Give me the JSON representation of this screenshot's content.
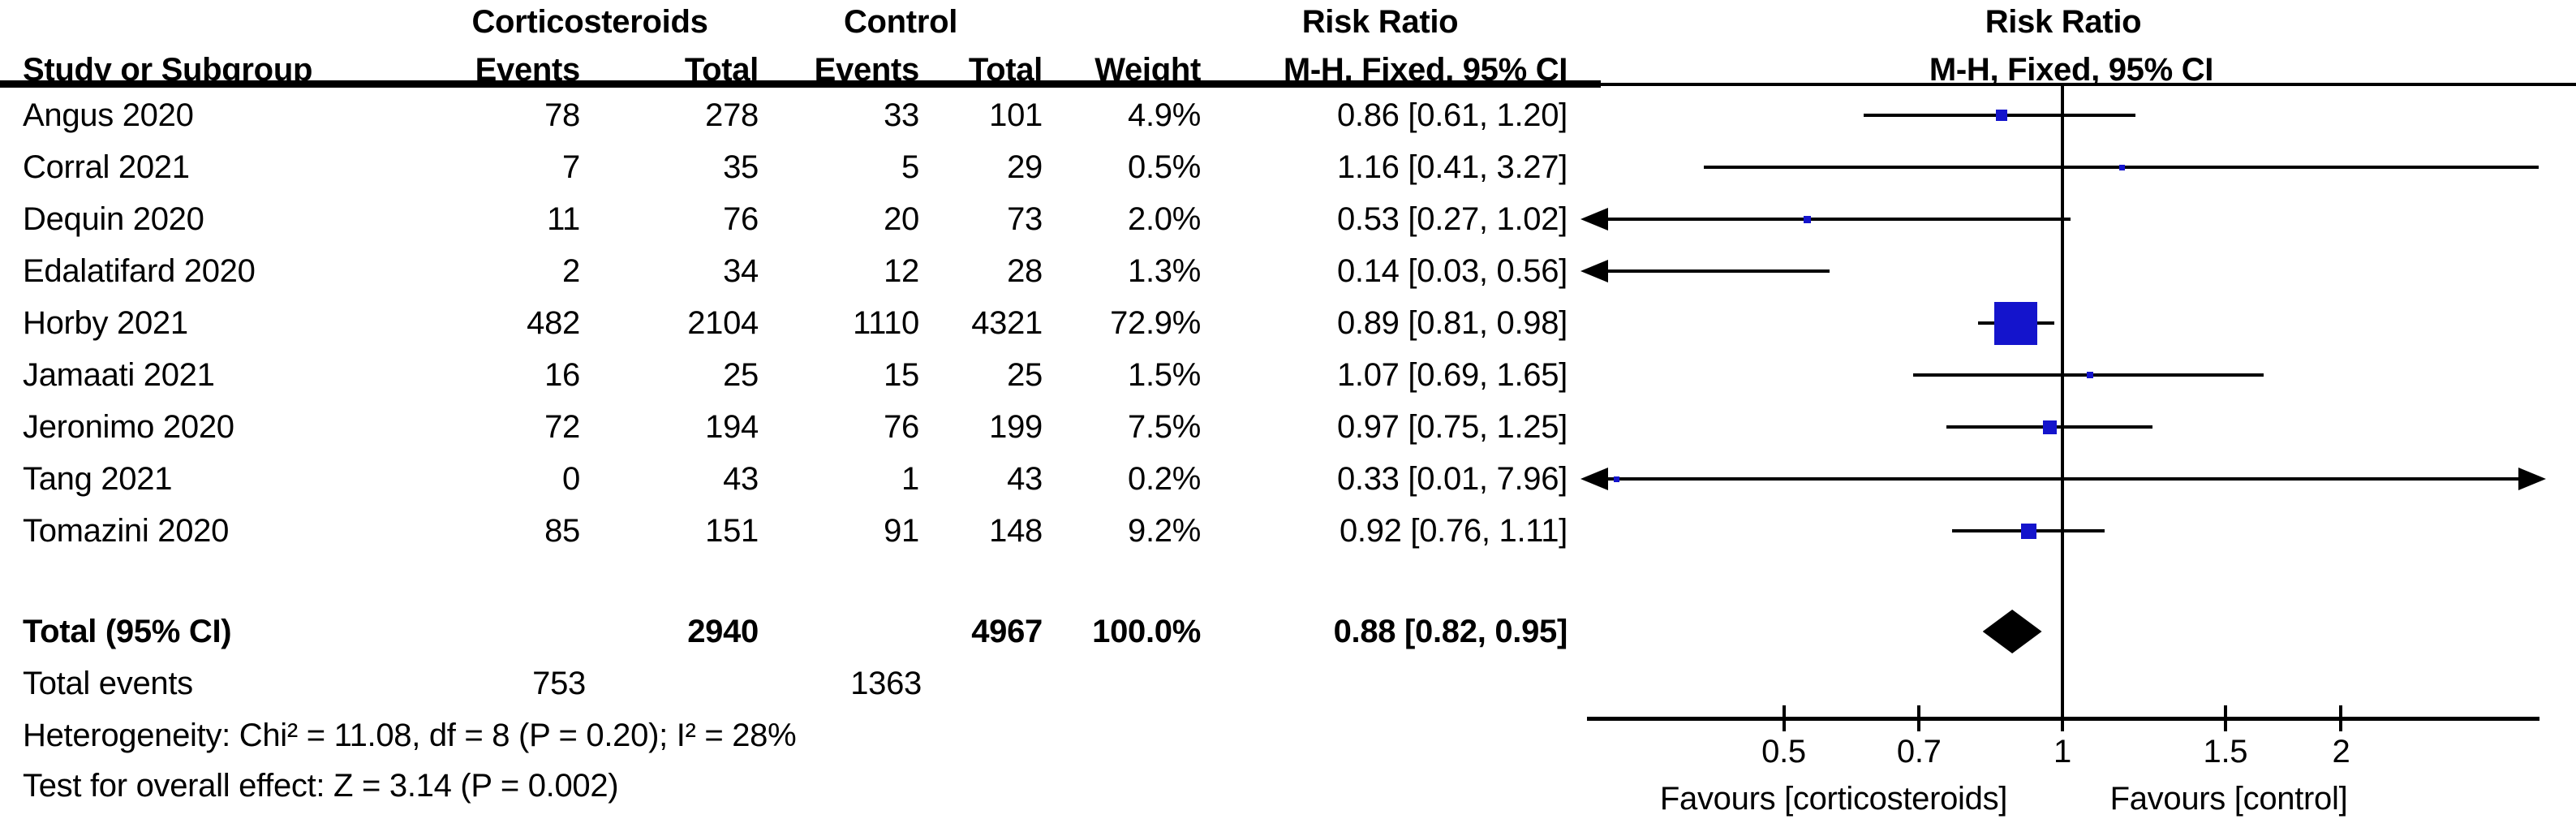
{
  "header": {
    "group1": "Corticosteroids",
    "group2": "Control",
    "risk_ratio": "Risk Ratio",
    "method": "M-H, Fixed, 95% CI",
    "study": "Study or Subgroup",
    "events": "Events",
    "total": "Total",
    "weight": "Weight"
  },
  "chart_data": {
    "type": "forest",
    "effect_measure": "Risk Ratio",
    "method": "M-H, Fixed, 95% CI",
    "x_scale": "log",
    "axis_ticks": [
      0.5,
      0.7,
      1,
      1.5,
      2
    ],
    "axis_range": [
      0.3,
      3.3
    ],
    "favours_left": "Favours [corticosteroids]",
    "favours_right": "Favours [control]",
    "studies": [
      {
        "study": "Angus 2020",
        "events1": 78,
        "total1": 278,
        "events2": 33,
        "total2": 101,
        "weight": "4.9%",
        "weight_value": 4.9,
        "rr": 0.86,
        "ci_low": 0.61,
        "ci_high": 1.2,
        "estimate_label": "0.86 [0.61, 1.20]"
      },
      {
        "study": "Corral 2021",
        "events1": 7,
        "total1": 35,
        "events2": 5,
        "total2": 29,
        "weight": "0.5%",
        "weight_value": 0.5,
        "rr": 1.16,
        "ci_low": 0.41,
        "ci_high": 3.27,
        "estimate_label": "1.16 [0.41, 3.27]"
      },
      {
        "study": "Dequin 2020",
        "events1": 11,
        "total1": 76,
        "events2": 20,
        "total2": 73,
        "weight": "2.0%",
        "weight_value": 2.0,
        "rr": 0.53,
        "ci_low": 0.27,
        "ci_high": 1.02,
        "estimate_label": "0.53 [0.27, 1.02]"
      },
      {
        "study": "Edalatifard 2020",
        "events1": 2,
        "total1": 34,
        "events2": 12,
        "total2": 28,
        "weight": "1.3%",
        "weight_value": 1.3,
        "rr": 0.14,
        "ci_low": 0.03,
        "ci_high": 0.56,
        "estimate_label": "0.14 [0.03, 0.56]"
      },
      {
        "study": "Horby 2021",
        "events1": 482,
        "total1": 2104,
        "events2": 1110,
        "total2": 4321,
        "weight": "72.9%",
        "weight_value": 72.9,
        "rr": 0.89,
        "ci_low": 0.81,
        "ci_high": 0.98,
        "estimate_label": "0.89 [0.81, 0.98]"
      },
      {
        "study": "Jamaati 2021",
        "events1": 16,
        "total1": 25,
        "events2": 15,
        "total2": 25,
        "weight": "1.5%",
        "weight_value": 1.5,
        "rr": 1.07,
        "ci_low": 0.69,
        "ci_high": 1.65,
        "estimate_label": "1.07 [0.69, 1.65]"
      },
      {
        "study": "Jeronimo 2020",
        "events1": 72,
        "total1": 194,
        "events2": 76,
        "total2": 199,
        "weight": "7.5%",
        "weight_value": 7.5,
        "rr": 0.97,
        "ci_low": 0.75,
        "ci_high": 1.25,
        "estimate_label": "0.97 [0.75, 1.25]"
      },
      {
        "study": "Tang 2021",
        "events1": 0,
        "total1": 43,
        "events2": 1,
        "total2": 43,
        "weight": "0.2%",
        "weight_value": 0.2,
        "rr": 0.33,
        "ci_low": 0.01,
        "ci_high": 7.96,
        "estimate_label": "0.33 [0.01, 7.96]"
      },
      {
        "study": "Tomazini 2020",
        "events1": 85,
        "total1": 151,
        "events2": 91,
        "total2": 148,
        "weight": "9.2%",
        "weight_value": 9.2,
        "rr": 0.92,
        "ci_low": 0.76,
        "ci_high": 1.11,
        "estimate_label": "0.92 [0.76, 1.11]"
      }
    ],
    "total": {
      "label": "Total (95% CI)",
      "total1": 2940,
      "total2": 4967,
      "weight": "100.0%",
      "rr": 0.88,
      "ci_low": 0.82,
      "ci_high": 0.95,
      "estimate_label": "0.88 [0.82, 0.95]"
    }
  },
  "footer": {
    "total_events_label": "Total events",
    "total_events1": 753,
    "total_events2": 1363,
    "heterogeneity": "Heterogeneity: Chi² = 11.08, df = 8 (P = 0.20); I² = 28%",
    "overall_effect": "Test for overall effect: Z = 3.14 (P = 0.002)"
  },
  "colors": {
    "marker_blue": "#1414CC",
    "line_black": "#000000"
  }
}
